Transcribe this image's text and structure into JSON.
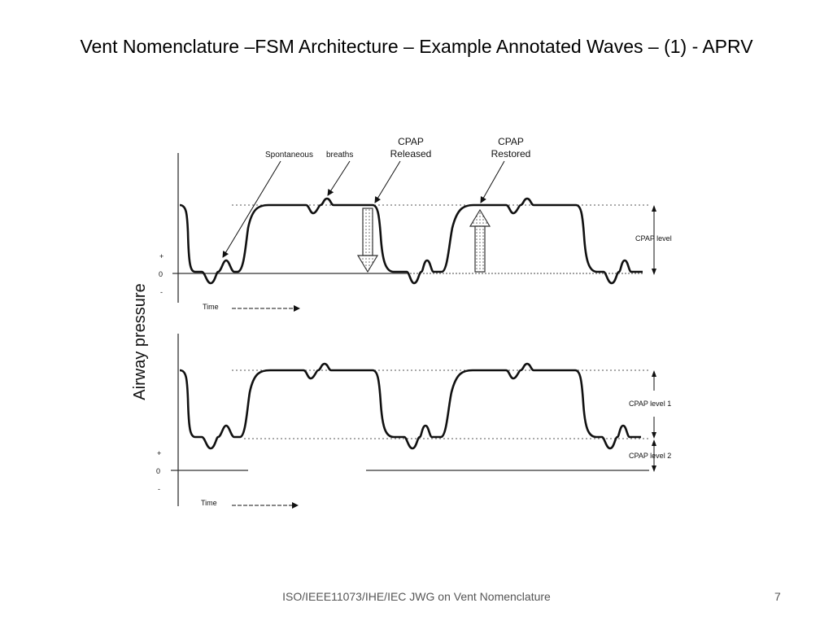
{
  "slide": {
    "title": "Vent Nomenclature –FSM Architecture – Example Annotated Waves – (1) - APRV",
    "footer": "ISO/IEEE11073/IHE/IEC JWG on Vent Nomenclature",
    "page_number": "7"
  },
  "figure": {
    "y_axis_label": "Airway pressure",
    "top_panel": {
      "annotations": {
        "spontaneous_breaths": "Spontaneous",
        "breaths_word": "breaths",
        "cpap_released_line1": "CPAP",
        "cpap_released_line2": "Released",
        "cpap_restored_line1": "CPAP",
        "cpap_restored_line2": "Restored"
      },
      "plus": "+",
      "zero": "0",
      "minus": "-",
      "time_label": "Time",
      "cpap_level_label": "CPAP level"
    },
    "bottom_panel": {
      "plus": "+",
      "zero": "0",
      "minus": "-",
      "time_label": "Time",
      "cpap_level1_label": "CPAP level 1",
      "cpap_level2_label": "CPAP level 2"
    }
  }
}
